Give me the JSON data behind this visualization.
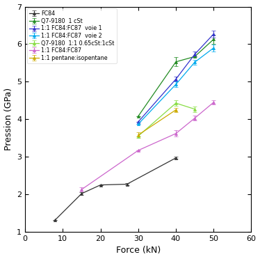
{
  "series": [
    {
      "label": "FC84",
      "color": "#333333",
      "x": [
        8,
        15,
        20,
        27,
        40
      ],
      "y": [
        1.32,
        2.02,
        2.25,
        2.27,
        2.97
      ],
      "yerr": [
        0.0,
        0.03,
        0.0,
        0.03,
        0.03
      ],
      "marker": "^",
      "ms": 3
    },
    {
      "label": "Q7-9180  1 cSt",
      "color": "#228B22",
      "x": [
        30,
        40,
        45,
        50
      ],
      "y": [
        4.08,
        5.53,
        5.67,
        6.13
      ],
      "yerr": [
        0.0,
        0.12,
        0.0,
        0.12
      ],
      "marker": "^",
      "ms": 3
    },
    {
      "label": "1:1 FC84:FC87  voie 1",
      "color": "#3333cc",
      "x": [
        30,
        40,
        45,
        50
      ],
      "y": [
        3.93,
        5.07,
        5.73,
        6.27
      ],
      "yerr": [
        0.0,
        0.07,
        0.08,
        0.09
      ],
      "marker": "^",
      "ms": 3
    },
    {
      "label": "1:1 FC84:FC87  voie 2",
      "color": "#00aaee",
      "x": [
        30,
        40,
        45,
        50
      ],
      "y": [
        3.87,
        4.93,
        5.52,
        5.9
      ],
      "yerr": [
        0.0,
        0.07,
        0.07,
        0.09
      ],
      "marker": "^",
      "ms": 3
    },
    {
      "label": "Q7-9180  1:1 0.65cSt:1cSt",
      "color": "#88dd44",
      "x": [
        30,
        40,
        45
      ],
      "y": [
        3.55,
        4.43,
        4.27
      ],
      "yerr": [
        0.0,
        0.07,
        0.07
      ],
      "marker": "^",
      "ms": 3
    },
    {
      "label": "1:1 FC84:FC87",
      "color": "#cc66cc",
      "x": [
        15,
        30,
        40,
        45,
        50
      ],
      "y": [
        2.13,
        3.17,
        3.62,
        4.03,
        4.45
      ],
      "yerr": [
        0.05,
        0.0,
        0.08,
        0.07,
        0.05
      ],
      "marker": "^",
      "ms": 3
    },
    {
      "label": "1:1 pentane:isopentane",
      "color": "#ccaa00",
      "x": [
        30,
        40
      ],
      "y": [
        3.58,
        4.25
      ],
      "yerr": [
        0.07,
        0.06
      ],
      "marker": "^",
      "ms": 3
    }
  ],
  "xlabel": "Force (kN)",
  "ylabel": "Pression (GPa)",
  "xlim": [
    0,
    60
  ],
  "ylim": [
    1,
    7
  ],
  "xticks": [
    0,
    10,
    20,
    30,
    40,
    50,
    60
  ],
  "yticks": [
    1,
    2,
    3,
    4,
    5,
    6,
    7
  ],
  "legend_loc": "upper left",
  "legend_fontsize": 5.8,
  "figsize": [
    3.74,
    3.72
  ],
  "dpi": 100,
  "tick_fontsize": 8,
  "label_fontsize": 9
}
